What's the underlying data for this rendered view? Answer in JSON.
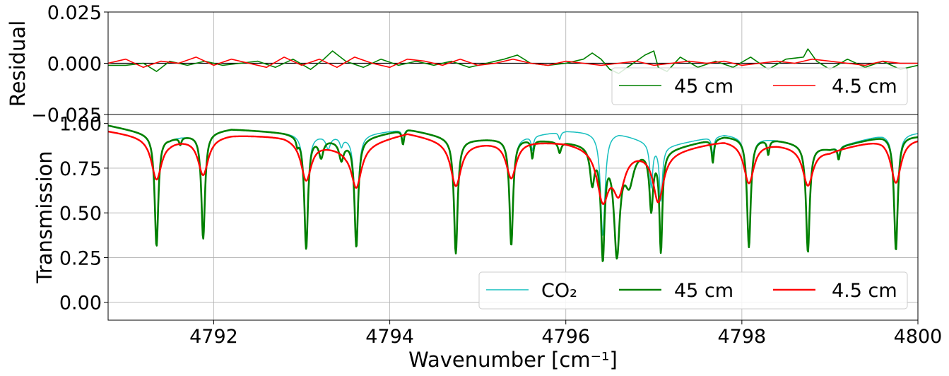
{
  "chart_data": [
    {
      "panel": "residual",
      "type": "line",
      "ylabel": "Residual",
      "xlim": [
        4790.8,
        4800
      ],
      "ylim": [
        -0.025,
        0.025
      ],
      "yticks": [
        -0.025,
        0.0,
        0.025
      ],
      "ytick_labels": [
        "−0.025",
        "0.000",
        "0.025"
      ],
      "grid": true,
      "reference_line": 0.0,
      "legend": {
        "placement": "lower-right",
        "entries": [
          "45 cm",
          "4.5 cm"
        ]
      },
      "series": [
        {
          "name": "45 cm",
          "color": "#008000",
          "x": [
            4790.8,
            4791.0,
            4791.2,
            4791.35,
            4791.5,
            4791.7,
            4791.9,
            4792.1,
            4792.3,
            4792.5,
            4792.7,
            4792.9,
            4793.1,
            4793.25,
            4793.35,
            4793.5,
            4793.7,
            4793.9,
            4794.1,
            4794.3,
            4794.5,
            4794.7,
            4794.9,
            4795.1,
            4795.3,
            4795.45,
            4795.6,
            4795.8,
            4796.0,
            4796.2,
            4796.3,
            4796.4,
            4796.5,
            4796.6,
            4796.7,
            4796.8,
            4796.9,
            4797.0,
            4797.05,
            4797.15,
            4797.3,
            4797.5,
            4797.7,
            4797.9,
            4798.1,
            4798.3,
            4798.5,
            4798.7,
            4798.75,
            4798.85,
            4799.0,
            4799.2,
            4799.4,
            4799.6,
            4799.8,
            4800.0
          ],
          "y": [
            -0.001,
            -0.001,
            0.0,
            -0.004,
            0.001,
            -0.001,
            0.001,
            -0.001,
            0.0,
            0.001,
            -0.002,
            0.002,
            -0.003,
            0.002,
            0.006,
            0.001,
            -0.002,
            0.002,
            -0.001,
            0.001,
            -0.001,
            0.001,
            -0.002,
            0.0,
            0.002,
            0.004,
            0.0,
            -0.001,
            0.0,
            0.002,
            0.005,
            0.002,
            -0.003,
            -0.005,
            -0.002,
            0.001,
            0.004,
            0.006,
            -0.002,
            -0.004,
            0.003,
            -0.002,
            0.001,
            -0.002,
            0.003,
            -0.003,
            0.002,
            0.003,
            0.007,
            0.001,
            -0.003,
            0.002,
            -0.002,
            0.001,
            -0.003,
            -0.001
          ]
        },
        {
          "name": "4.5 cm",
          "color": "#ff0000",
          "x": [
            4790.8,
            4791.0,
            4791.2,
            4791.4,
            4791.6,
            4791.8,
            4792.0,
            4792.2,
            4792.4,
            4792.6,
            4792.8,
            4793.0,
            4793.2,
            4793.4,
            4793.6,
            4793.8,
            4794.0,
            4794.2,
            4794.4,
            4794.6,
            4794.8,
            4795.0,
            4795.2,
            4795.4,
            4795.6,
            4795.8,
            4796.0,
            4796.2,
            4796.4,
            4796.6,
            4796.8,
            4797.0,
            4797.2,
            4797.4,
            4797.6,
            4797.8,
            4798.0,
            4798.2,
            4798.4,
            4798.6,
            4798.8,
            4799.0,
            4799.2,
            4799.4,
            4799.6,
            4799.8,
            4800.0
          ],
          "y": [
            0.0,
            0.002,
            -0.002,
            0.001,
            0.0,
            0.003,
            -0.001,
            0.002,
            0.0,
            -0.002,
            0.003,
            -0.001,
            0.002,
            -0.002,
            0.003,
            0.0,
            -0.002,
            0.002,
            0.001,
            -0.001,
            0.002,
            -0.001,
            0.0,
            0.002,
            0.0,
            -0.001,
            0.001,
            0.0,
            -0.001,
            0.0,
            0.001,
            -0.001,
            0.0,
            0.001,
            0.0,
            0.001,
            -0.001,
            0.0,
            0.001,
            0.0,
            0.002,
            0.001,
            0.0,
            -0.001,
            0.001,
            0.0,
            0.0
          ]
        }
      ]
    },
    {
      "panel": "transmission",
      "type": "line",
      "ylabel": "Transmission",
      "xlabel": "Wavenumber [cm⁻¹]",
      "xlim": [
        4790.8,
        4800
      ],
      "ylim": [
        -0.1,
        1.05
      ],
      "xticks": [
        4792,
        4794,
        4796,
        4798,
        4800
      ],
      "xtick_labels": [
        "4792",
        "4794",
        "4796",
        "4798",
        "4800"
      ],
      "yticks": [
        0.0,
        0.25,
        0.5,
        0.75,
        1.0
      ],
      "ytick_labels": [
        "0.00",
        "0.25",
        "0.50",
        "0.75",
        "1.00"
      ],
      "grid": true,
      "legend": {
        "placement": "lower-right",
        "entries": [
          "CO₂",
          "45 cm",
          "4.5 cm"
        ]
      },
      "series": [
        {
          "name": "CO₂",
          "color": "#17bfbf",
          "baseline": [
            [
              4790.8,
              0.99
            ],
            [
              4791.5,
              0.92
            ],
            [
              4792.2,
              0.97
            ],
            [
              4792.8,
              0.95
            ],
            [
              4793.5,
              0.93
            ],
            [
              4794.2,
              0.97
            ],
            [
              4794.8,
              0.91
            ],
            [
              4795.4,
              0.92
            ],
            [
              4796.0,
              0.96
            ],
            [
              4796.6,
              0.95
            ],
            [
              4797.1,
              0.87
            ],
            [
              4797.8,
              0.94
            ],
            [
              4798.4,
              0.91
            ],
            [
              4799.0,
              0.86
            ],
            [
              4799.6,
              0.94
            ],
            [
              4800.0,
              0.95
            ]
          ],
          "lines": [
            [
              4791.35,
              0.62,
              0.025
            ],
            [
              4791.88,
              0.59,
              0.025
            ],
            [
              4793.05,
              0.63,
              0.025
            ],
            [
              4793.3,
              0.07,
              0.03
            ],
            [
              4793.45,
              0.05,
              0.02
            ],
            [
              4793.62,
              0.6,
              0.025
            ],
            [
              4794.15,
              0.06,
              0.015
            ],
            [
              4794.75,
              0.64,
              0.025
            ],
            [
              4795.38,
              0.6,
              0.025
            ],
            [
              4795.62,
              0.08,
              0.015
            ],
            [
              4795.93,
              0.04,
              0.015
            ],
            [
              4796.42,
              0.58,
              0.03
            ],
            [
              4796.97,
              0.24,
              0.02
            ],
            [
              4797.08,
              0.3,
              0.02
            ],
            [
              4797.67,
              0.1,
              0.015
            ],
            [
              4798.08,
              0.61,
              0.025
            ],
            [
              4798.75,
              0.6,
              0.025
            ],
            [
              4799.1,
              0.05,
              0.015
            ],
            [
              4799.75,
              0.64,
              0.025
            ]
          ]
        },
        {
          "name": "45 cm",
          "color": "#008000",
          "baseline": [
            [
              4790.8,
              0.99
            ],
            [
              4791.5,
              0.92
            ],
            [
              4792.2,
              0.97
            ],
            [
              4792.8,
              0.95
            ],
            [
              4793.5,
              0.9
            ],
            [
              4794.2,
              0.97
            ],
            [
              4794.8,
              0.91
            ],
            [
              4795.4,
              0.92
            ],
            [
              4796.0,
              0.9
            ],
            [
              4796.6,
              0.87
            ],
            [
              4797.1,
              0.85
            ],
            [
              4797.8,
              0.93
            ],
            [
              4798.4,
              0.91
            ],
            [
              4799.0,
              0.86
            ],
            [
              4799.6,
              0.93
            ],
            [
              4800.0,
              0.93
            ]
          ],
          "lines": [
            [
              4791.35,
              0.62,
              0.025
            ],
            [
              4791.62,
              0.04,
              0.015
            ],
            [
              4791.88,
              0.59,
              0.025
            ],
            [
              4792.95,
              0.04,
              0.015
            ],
            [
              4793.05,
              0.63,
              0.025
            ],
            [
              4793.22,
              0.1,
              0.03
            ],
            [
              4793.45,
              0.1,
              0.03
            ],
            [
              4793.62,
              0.6,
              0.025
            ],
            [
              4794.15,
              0.08,
              0.015
            ],
            [
              4794.75,
              0.64,
              0.025
            ],
            [
              4795.38,
              0.6,
              0.025
            ],
            [
              4795.62,
              0.1,
              0.015
            ],
            [
              4795.93,
              0.06,
              0.02
            ],
            [
              4796.3,
              0.2,
              0.03
            ],
            [
              4796.42,
              0.6,
              0.025
            ],
            [
              4796.58,
              0.58,
              0.04
            ],
            [
              4796.72,
              0.18,
              0.06
            ],
            [
              4796.97,
              0.32,
              0.025
            ],
            [
              4797.08,
              0.55,
              0.02
            ],
            [
              4797.67,
              0.13,
              0.015
            ],
            [
              4798.08,
              0.61,
              0.025
            ],
            [
              4798.3,
              0.08,
              0.015
            ],
            [
              4798.75,
              0.6,
              0.025
            ],
            [
              4799.1,
              0.07,
              0.015
            ],
            [
              4799.75,
              0.64,
              0.025
            ]
          ]
        },
        {
          "name": "4.5 cm",
          "color": "#ff0000",
          "baseline": [
            [
              4790.8,
              0.96
            ],
            [
              4791.5,
              0.91
            ],
            [
              4792.2,
              0.94
            ],
            [
              4792.8,
              0.93
            ],
            [
              4793.5,
              0.86
            ],
            [
              4794.2,
              0.95
            ],
            [
              4794.8,
              0.89
            ],
            [
              4795.4,
              0.91
            ],
            [
              4796.0,
              0.9
            ],
            [
              4796.6,
              0.86
            ],
            [
              4797.1,
              0.84
            ],
            [
              4797.8,
              0.91
            ],
            [
              4798.4,
              0.89
            ],
            [
              4799.0,
              0.85
            ],
            [
              4799.6,
              0.92
            ],
            [
              4800.0,
              0.92
            ]
          ],
          "lines": [
            [
              4791.35,
              0.23,
              0.07
            ],
            [
              4791.88,
              0.21,
              0.07
            ],
            [
              4793.05,
              0.22,
              0.07
            ],
            [
              4793.62,
              0.23,
              0.07
            ],
            [
              4794.75,
              0.24,
              0.07
            ],
            [
              4795.38,
              0.21,
              0.07
            ],
            [
              4796.42,
              0.28,
              0.08
            ],
            [
              4796.6,
              0.22,
              0.08
            ],
            [
              4797.05,
              0.27,
              0.07
            ],
            [
              4798.08,
              0.23,
              0.07
            ],
            [
              4798.75,
              0.21,
              0.07
            ],
            [
              4799.75,
              0.25,
              0.07
            ]
          ]
        }
      ]
    }
  ]
}
